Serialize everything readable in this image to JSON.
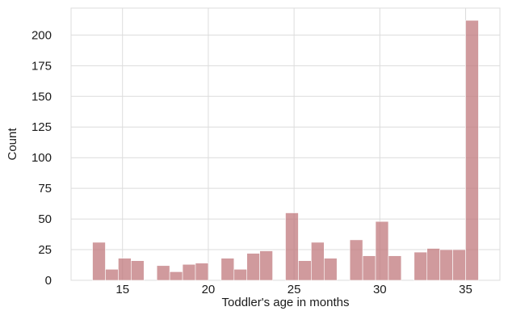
{
  "chart_data": {
    "type": "bar",
    "subtype": "histogram",
    "title": "",
    "xlabel": "Toddler's age in months",
    "ylabel": "Count",
    "xlim": [
      12.0,
      37.0
    ],
    "ylim": [
      0,
      222
    ],
    "xticks": [
      15,
      20,
      25,
      30,
      35
    ],
    "yticks": [
      0,
      25,
      50,
      75,
      100,
      125,
      150,
      175,
      200
    ],
    "grid": true,
    "bin_width": 0.75,
    "color": "#c0787c",
    "bins": [
      {
        "start": 13.25,
        "count": 31
      },
      {
        "start": 14.0,
        "count": 9
      },
      {
        "start": 14.75,
        "count": 18
      },
      {
        "start": 15.5,
        "count": 16
      },
      {
        "start": 17.0,
        "count": 12
      },
      {
        "start": 17.75,
        "count": 7
      },
      {
        "start": 18.5,
        "count": 13
      },
      {
        "start": 19.25,
        "count": 14
      },
      {
        "start": 20.75,
        "count": 18
      },
      {
        "start": 21.5,
        "count": 9
      },
      {
        "start": 22.25,
        "count": 22
      },
      {
        "start": 23.0,
        "count": 24
      },
      {
        "start": 24.5,
        "count": 55
      },
      {
        "start": 25.25,
        "count": 16
      },
      {
        "start": 26.0,
        "count": 31
      },
      {
        "start": 26.75,
        "count": 18
      },
      {
        "start": 28.25,
        "count": 33
      },
      {
        "start": 29.0,
        "count": 20
      },
      {
        "start": 29.75,
        "count": 48
      },
      {
        "start": 30.5,
        "count": 20
      },
      {
        "start": 32.0,
        "count": 23
      },
      {
        "start": 32.75,
        "count": 26
      },
      {
        "start": 33.5,
        "count": 25
      },
      {
        "start": 34.25,
        "count": 25
      },
      {
        "start": 35.0,
        "count": 212
      }
    ]
  }
}
